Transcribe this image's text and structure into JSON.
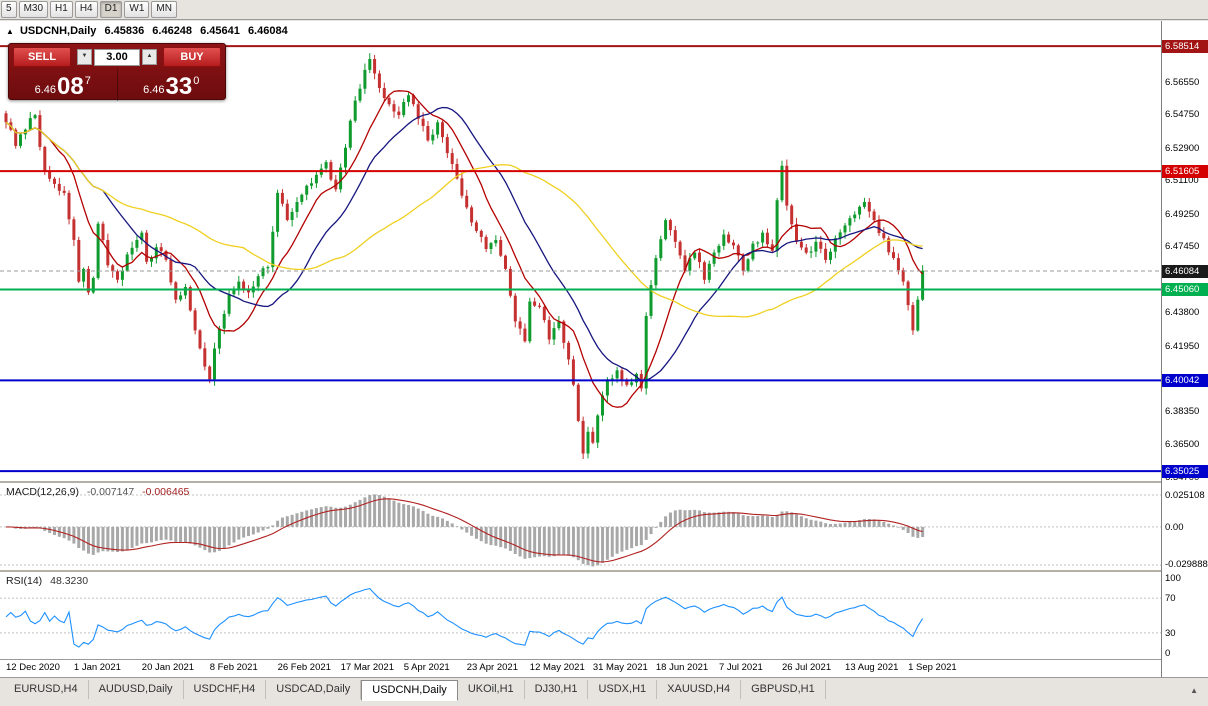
{
  "toolbar": {
    "timeframes": [
      "5",
      "M30",
      "H1",
      "H4",
      "D1",
      "W1",
      "MN"
    ],
    "active_timeframe": "D1"
  },
  "chart_header": {
    "symbol": "USDCNH,Daily",
    "open": "6.45836",
    "high": "6.46248",
    "low": "6.45641",
    "close": "6.46084"
  },
  "one_click": {
    "sell_label": "SELL",
    "buy_label": "BUY",
    "volume": "3.00",
    "sell_price": {
      "main": "6.46",
      "big": "08",
      "sup": "7"
    },
    "buy_price": {
      "main": "6.46",
      "big": "33",
      "sup": "0"
    }
  },
  "icons": {
    "expander": "▲",
    "volume_up": "▲",
    "volume_down": "▼",
    "tab_scroll": "▲"
  },
  "tabs": {
    "items": [
      "EURUSD,H4",
      "AUDUSD,Daily",
      "USDCHF,H4",
      "USDCAD,Daily",
      "USDCNH,Daily",
      "UKOil,H1",
      "DJ30,H1",
      "USDX,H1",
      "XAUUSD,H4",
      "GBPUSD,H1"
    ],
    "active": "USDCNH,Daily"
  },
  "chart_data": {
    "price": {
      "type": "candlestick",
      "symbol": "USDCNH",
      "timeframe": "Daily",
      "ylim": [
        6.3448,
        6.599
      ],
      "bar_count": 190,
      "up_color": "#0f9b2e",
      "down_color": "#c53030",
      "moving_averages": [
        {
          "name": "ma-fast",
          "period": 10,
          "color": "#b30000"
        },
        {
          "name": "ma-mid",
          "period": 21,
          "color": "#16167f"
        },
        {
          "name": "ma-slow",
          "period": 50,
          "color": "#efd020"
        }
      ],
      "levels": [
        {
          "label": "6.58514",
          "price": 6.58514,
          "color": "#a31515",
          "style": "solid"
        },
        {
          "label": "6.51605",
          "price": 6.51605,
          "color": "#d40000",
          "style": "solid"
        },
        {
          "label": "6.46084",
          "price": 6.46084,
          "color": "#1a1a1a",
          "style": "current"
        },
        {
          "label": "6.45060",
          "price": 6.4506,
          "color": "#00b050",
          "style": "solid"
        },
        {
          "label": "6.40042",
          "price": 6.40042,
          "color": "#0000cd",
          "style": "solid"
        },
        {
          "label": "6.35025",
          "price": 6.35025,
          "color": "#0000cd",
          "style": "solid"
        }
      ],
      "axis_ticks": [
        "6.56550",
        "6.54750",
        "6.52900",
        "6.51100",
        "6.49250",
        "6.47450",
        "6.43800",
        "6.41950",
        "6.38350",
        "6.36500",
        "6.34700"
      ],
      "x_labels": [
        {
          "i": 0,
          "t": "12 Dec 2020"
        },
        {
          "i": 14,
          "t": "1 Jan 2021"
        },
        {
          "i": 28,
          "t": "20 Jan 2021"
        },
        {
          "i": 42,
          "t": "8 Feb 2021"
        },
        {
          "i": 56,
          "t": "26 Feb 2021"
        },
        {
          "i": 69,
          "t": "17 Mar 2021"
        },
        {
          "i": 82,
          "t": "5 Apr 2021"
        },
        {
          "i": 95,
          "t": "23 Apr 2021"
        },
        {
          "i": 108,
          "t": "12 May 2021"
        },
        {
          "i": 121,
          "t": "31 May 2021"
        },
        {
          "i": 134,
          "t": "18 Jun 2021"
        },
        {
          "i": 147,
          "t": "7 Jul 2021"
        },
        {
          "i": 160,
          "t": "26 Jul 2021"
        },
        {
          "i": 173,
          "t": "13 Aug 2021"
        },
        {
          "i": 186,
          "t": "1 Sep 2021"
        }
      ],
      "close_anchors": [
        [
          0,
          6.543
        ],
        [
          2,
          6.53
        ],
        [
          4,
          6.539
        ],
        [
          6,
          6.547
        ],
        [
          8,
          6.516
        ],
        [
          10,
          6.509
        ],
        [
          12,
          6.504
        ],
        [
          14,
          6.478
        ],
        [
          15,
          6.455
        ],
        [
          16,
          6.462
        ],
        [
          17,
          6.449
        ],
        [
          18,
          6.457
        ],
        [
          19,
          6.487
        ],
        [
          20,
          6.478
        ],
        [
          21,
          6.464
        ],
        [
          23,
          6.456
        ],
        [
          25,
          6.47
        ],
        [
          27,
          6.478
        ],
        [
          28,
          6.482
        ],
        [
          29,
          6.466
        ],
        [
          31,
          6.474
        ],
        [
          33,
          6.467
        ],
        [
          35,
          6.445
        ],
        [
          37,
          6.452
        ],
        [
          39,
          6.428
        ],
        [
          41,
          6.408
        ],
        [
          42,
          6.401
        ],
        [
          43,
          6.418
        ],
        [
          44,
          6.429
        ],
        [
          46,
          6.448
        ],
        [
          48,
          6.455
        ],
        [
          50,
          6.449
        ],
        [
          52,
          6.458
        ],
        [
          54,
          6.463
        ],
        [
          56,
          6.504
        ],
        [
          58,
          6.489
        ],
        [
          60,
          6.499
        ],
        [
          62,
          6.508
        ],
        [
          64,
          6.514
        ],
        [
          66,
          6.521
        ],
        [
          68,
          6.506
        ],
        [
          70,
          6.529
        ],
        [
          72,
          6.555
        ],
        [
          74,
          6.572
        ],
        [
          75,
          6.578
        ],
        [
          76,
          6.57
        ],
        [
          77,
          6.562
        ],
        [
          79,
          6.553
        ],
        [
          81,
          6.547
        ],
        [
          83,
          6.558
        ],
        [
          85,
          6.545
        ],
        [
          87,
          6.533
        ],
        [
          89,
          6.543
        ],
        [
          91,
          6.526
        ],
        [
          93,
          6.512
        ],
        [
          95,
          6.496
        ],
        [
          97,
          6.483
        ],
        [
          99,
          6.473
        ],
        [
          101,
          6.478
        ],
        [
          103,
          6.462
        ],
        [
          105,
          6.433
        ],
        [
          107,
          6.422
        ],
        [
          108,
          6.444
        ],
        [
          110,
          6.441
        ],
        [
          112,
          6.423
        ],
        [
          114,
          6.433
        ],
        [
          116,
          6.412
        ],
        [
          117,
          6.398
        ],
        [
          118,
          6.378
        ],
        [
          119,
          6.36
        ],
        [
          120,
          6.372
        ],
        [
          121,
          6.366
        ],
        [
          122,
          6.381
        ],
        [
          124,
          6.401
        ],
        [
          126,
          6.406
        ],
        [
          128,
          6.398
        ],
        [
          130,
          6.404
        ],
        [
          131,
          6.396
        ],
        [
          132,
          6.436
        ],
        [
          134,
          6.468
        ],
        [
          136,
          6.489
        ],
        [
          138,
          6.477
        ],
        [
          140,
          6.461
        ],
        [
          142,
          6.471
        ],
        [
          144,
          6.456
        ],
        [
          146,
          6.471
        ],
        [
          148,
          6.481
        ],
        [
          150,
          6.475
        ],
        [
          152,
          6.461
        ],
        [
          154,
          6.476
        ],
        [
          156,
          6.482
        ],
        [
          158,
          6.472
        ],
        [
          159,
          6.5
        ],
        [
          160,
          6.519
        ],
        [
          161,
          6.497
        ],
        [
          163,
          6.477
        ],
        [
          165,
          6.471
        ],
        [
          167,
          6.477
        ],
        [
          169,
          6.467
        ],
        [
          171,
          6.479
        ],
        [
          173,
          6.486
        ],
        [
          175,
          6.492
        ],
        [
          177,
          6.499
        ],
        [
          179,
          6.489
        ],
        [
          181,
          6.479
        ],
        [
          183,
          6.468
        ],
        [
          185,
          6.455
        ],
        [
          186,
          6.442
        ],
        [
          187,
          6.428
        ],
        [
          188,
          6.445
        ],
        [
          189,
          6.461
        ]
      ]
    },
    "macd": {
      "type": "macd",
      "label": "MACD(12,26,9)",
      "fast": 12,
      "slow": 26,
      "signal": 9,
      "value_main": "-0.007147",
      "value_signal": "-0.006465",
      "ylim": [
        -0.0338,
        0.0345
      ],
      "axis_ticks": [
        "0.025108",
        "0.00",
        "-0.029888"
      ],
      "histogram_color": "#a8a8a8",
      "signal_color": "#b22222"
    },
    "rsi": {
      "type": "rsi",
      "label": "RSI(14)",
      "period": 14,
      "value": "48.3230",
      "ylim": [
        0,
        100
      ],
      "levels": [
        70,
        30
      ],
      "axis_ticks": [
        "100",
        "70",
        "30",
        "0"
      ],
      "line_color": "#1e90ff"
    }
  }
}
